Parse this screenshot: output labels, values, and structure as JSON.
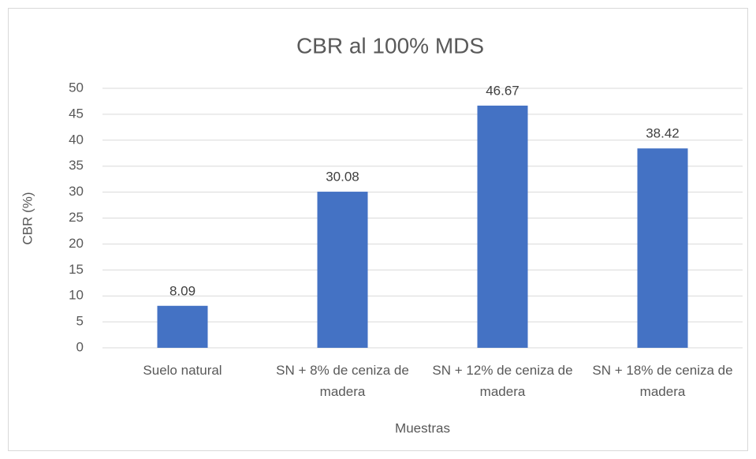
{
  "chart_data": {
    "type": "bar",
    "title": "CBR al 100% MDS",
    "x_label": "Muestras",
    "y_label": "CBR (%)",
    "categories": [
      "Suelo natural",
      "SN + 8% de ceniza de madera",
      "SN + 12% de ceniza de madera",
      "SN + 18% de ceniza de madera"
    ],
    "values": [
      8.09,
      30.08,
      46.67,
      38.42
    ],
    "color": "#4472c4",
    "ylim": [
      0,
      50
    ],
    "yticks": [
      0,
      5,
      10,
      15,
      20,
      25,
      30,
      35,
      40,
      45,
      50
    ],
    "grid": true
  }
}
